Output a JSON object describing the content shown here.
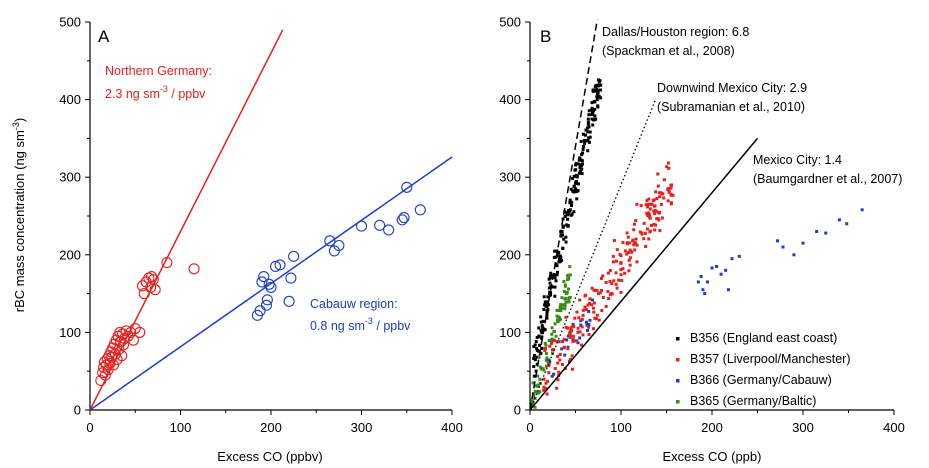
{
  "chart_data": [
    {
      "type": "scatter",
      "panel_label": "A",
      "xlabel": "Excess CO (ppbv)",
      "ylabel": "rBC mass concentration (ng sm",
      "ylabel_sup": "-3",
      "ylabel_tail": ")",
      "xlim": [
        0,
        400
      ],
      "ylim": [
        0,
        500
      ],
      "xticks": [
        0,
        100,
        200,
        300,
        400
      ],
      "yticks": [
        0,
        100,
        200,
        300,
        400,
        500
      ],
      "grid": false,
      "annotations": {
        "northern_title": "Northern Germany:",
        "northern_value": "2.3 ng sm",
        "northern_sup": "-3",
        "northern_unit": " / ppbv",
        "cabauw_title": "Cabauw region:",
        "cabauw_value": "0.8 ng sm",
        "cabauw_sup": "-3",
        "cabauw_unit": " / ppbv"
      },
      "colors": {
        "northern": "#e8201d",
        "cabauw": "#1c3fc0"
      },
      "series": [
        {
          "group": "northern",
          "marker": "open-circle",
          "points": [
            [
              12,
              38
            ],
            [
              14,
              48
            ],
            [
              15,
              55
            ],
            [
              16,
              62
            ],
            [
              17,
              45
            ],
            [
              18,
              58
            ],
            [
              19,
              66
            ],
            [
              20,
              52
            ],
            [
              21,
              70
            ],
            [
              22,
              60
            ],
            [
              23,
              75
            ],
            [
              24,
              68
            ],
            [
              25,
              80
            ],
            [
              26,
              58
            ],
            [
              27,
              85
            ],
            [
              28,
              72
            ],
            [
              29,
              90
            ],
            [
              30,
              65
            ],
            [
              31,
              95
            ],
            [
              32,
              78
            ],
            [
              33,
              100
            ],
            [
              34,
              88
            ],
            [
              35,
              70
            ],
            [
              36,
              98
            ],
            [
              37,
              84
            ],
            [
              38,
              92
            ],
            [
              40,
              102
            ],
            [
              42,
              95
            ],
            [
              45,
              100
            ],
            [
              48,
              90
            ],
            [
              50,
              105
            ],
            [
              55,
              100
            ],
            [
              58,
              160
            ],
            [
              60,
              150
            ],
            [
              62,
              165
            ],
            [
              65,
              170
            ],
            [
              67,
              158
            ],
            [
              68,
              172
            ],
            [
              70,
              168
            ],
            [
              72,
              155
            ],
            [
              85,
              190
            ],
            [
              115,
              182
            ]
          ]
        },
        {
          "group": "cabauw",
          "marker": "open-circle",
          "points": [
            [
              185,
              122
            ],
            [
              188,
              128
            ],
            [
              190,
              165
            ],
            [
              192,
              172
            ],
            [
              195,
              135
            ],
            [
              196,
              142
            ],
            [
              198,
              162
            ],
            [
              200,
              158
            ],
            [
              205,
              185
            ],
            [
              210,
              187
            ],
            [
              220,
              140
            ],
            [
              222,
              170
            ],
            [
              225,
              198
            ],
            [
              265,
              218
            ],
            [
              270,
              205
            ],
            [
              275,
              212
            ],
            [
              300,
              237
            ],
            [
              320,
              238
            ],
            [
              330,
              232
            ],
            [
              345,
              245
            ],
            [
              347,
              248
            ],
            [
              350,
              287
            ],
            [
              365,
              258
            ]
          ]
        }
      ],
      "fit_lines": [
        {
          "group": "northern",
          "slope": 2.3,
          "x": [
            0,
            213
          ]
        },
        {
          "group": "cabauw",
          "slope": 0.815,
          "x": [
            0,
            400
          ]
        }
      ]
    },
    {
      "type": "scatter",
      "panel_label": "B",
      "xlabel": "Excess CO (ppb)",
      "xlim": [
        0,
        400
      ],
      "ylim": [
        0,
        500
      ],
      "xticks": [
        0,
        100,
        200,
        300,
        400
      ],
      "yticks": [
        0,
        100,
        200,
        300,
        400,
        500
      ],
      "grid": false,
      "annotations": {
        "dallas_title": "Dallas/Houston region: 6.8",
        "dallas_ref": "(Spackman et al., 2008)",
        "downwind_title": "Downwind Mexico City: 2.9",
        "downwind_ref": "(Subramanian et al., 2010)",
        "mexico_title": "Mexico City: 1.4",
        "mexico_ref": "(Baumgardner et al., 2007)"
      },
      "reference_lines": [
        {
          "name": "Dallas/Houston region",
          "slope": 6.8,
          "style": "dashed",
          "x": [
            0,
            74
          ]
        },
        {
          "name": "Downwind Mexico City",
          "slope": 2.9,
          "style": "dotted",
          "x": [
            0,
            138
          ]
        },
        {
          "name": "Mexico City",
          "slope": 1.4,
          "style": "solid",
          "x": [
            0,
            250
          ]
        }
      ],
      "legend_position": "bottom-right",
      "series": [
        {
          "name": "B356 (England east coast)",
          "color": "#000000",
          "generator": {
            "xmin": 4,
            "xmax": 78,
            "slope": 5.0,
            "intercept": 40,
            "spread": 30,
            "n": 230
          }
        },
        {
          "name": "B357 (Liverpool/Manchester)",
          "color": "#e8201d",
          "generator": {
            "xmin": 15,
            "xmax": 158,
            "slope": 1.8,
            "intercept": 10,
            "spread": 45,
            "n": 230
          }
        },
        {
          "name": "B366 (Germany/Cabauw)",
          "color": "#1c3fc0",
          "points": [
            [
              185,
              165
            ],
            [
              188,
              172
            ],
            [
              190,
              155
            ],
            [
              192,
              150
            ],
            [
              195,
              165
            ],
            [
              200,
              183
            ],
            [
              205,
              185
            ],
            [
              210,
              175
            ],
            [
              215,
              180
            ],
            [
              218,
              155
            ],
            [
              222,
              195
            ],
            [
              230,
              198
            ],
            [
              272,
              218
            ],
            [
              278,
              210
            ],
            [
              290,
              200
            ],
            [
              300,
              215
            ],
            [
              315,
              230
            ],
            [
              325,
              228
            ],
            [
              340,
              245
            ],
            [
              348,
              240
            ],
            [
              365,
              258
            ]
          ],
          "generator": {
            "xmin": 20,
            "xmax": 70,
            "slope": 1.6,
            "intercept": 15,
            "spread": 25,
            "n": 25
          }
        },
        {
          "name": "B365 (Germany/Baltic)",
          "color": "#3a8a1a",
          "generator": {
            "xmin": 2,
            "xmax": 45,
            "slope": 3.6,
            "intercept": 8,
            "spread": 28,
            "n": 90
          }
        }
      ]
    }
  ]
}
